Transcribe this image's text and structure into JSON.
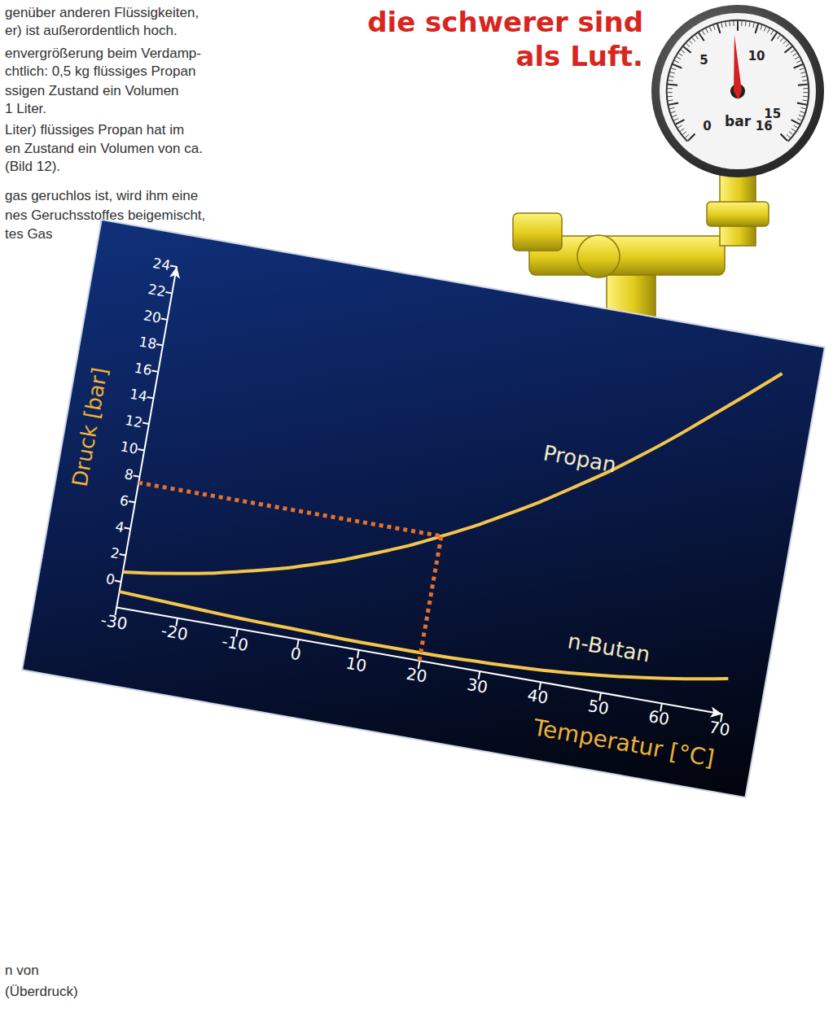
{
  "page_text": {
    "headline": [
      "die schwerer sind",
      "als Luft."
    ],
    "text_lines": [
      "genüber anderen Flüssigkeiten,",
      "er) ist außerordentlich hoch.",
      "envergrößerung beim Verdamp-",
      "chtlich: 0,5 kg flüssiges Propan",
      "ssigen Zustand ein Volumen",
      "1 Liter.",
      "Liter) flüssiges Propan hat im",
      "en Zustand ein Volumen von ca.",
      "(Bild 12).",
      "gas geruchlos ist, wird ihm eine",
      "nes Geruchsstoffes beigemischt,",
      "tes Gas"
    ],
    "caption_lines": [
      "n von",
      "(Überdruck)"
    ]
  },
  "chart_data": [
    {
      "type": "line",
      "x": [
        -30,
        -20,
        -10,
        0,
        10,
        20,
        30,
        40,
        50,
        60,
        70
      ],
      "series": [
        {
          "name": "Propan",
          "color": "#f3c64b",
          "values": [
            0.7,
            1.4,
            2.4,
            3.7,
            5.4,
            7.5,
            10.0,
            12.9,
            16.2,
            20.0,
            24.0
          ]
        },
        {
          "name": "n-Butan",
          "color": "#f3c64b",
          "values": [
            -0.8,
            -1.0,
            -1.2,
            -1.3,
            -1.4,
            -1.4,
            -1.3,
            -1.1,
            -0.7,
            -0.1,
            0.7
          ]
        }
      ],
      "xlabel": "Temperatur [°C]",
      "ylabel": "Druck [bar]",
      "xlim": [
        -30,
        70
      ],
      "xticks": [
        -30,
        -20,
        -10,
        0,
        10,
        20,
        30,
        40,
        50,
        60,
        70
      ],
      "ylim": [
        -2,
        24
      ],
      "yticks": [
        0,
        2,
        4,
        6,
        8,
        10,
        12,
        14,
        16,
        18,
        20,
        22,
        24
      ],
      "grid": false,
      "reading": {
        "x": 20,
        "y": 7.5,
        "color": "#e8702a",
        "line_style": "dotted"
      }
    },
    {
      "type": "gauge",
      "unit": "bar",
      "range": [
        0,
        16
      ],
      "ticks": [
        0,
        5,
        10,
        15,
        16
      ],
      "value": 7.8
    }
  ]
}
